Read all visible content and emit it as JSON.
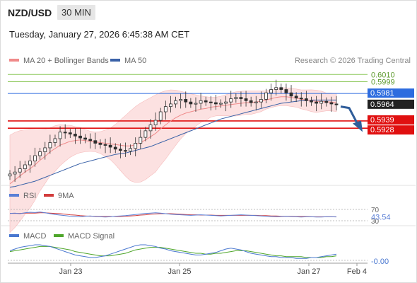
{
  "header": {
    "pair": "NZD/USD",
    "timeframe": "30 MIN",
    "timestamp": "Tuesday, January 27, 2026 6:45:38 AM CET"
  },
  "legend_main": {
    "ma20": "MA 20 + Bollinger Bands",
    "ma50": "MA 50"
  },
  "credit": "Research © 2026 Trading Central",
  "legend_rsi": {
    "rsi": "RSI",
    "ma9": "9MA"
  },
  "legend_macd": {
    "macd": "MACD",
    "signal": "MACD Signal"
  },
  "colors": {
    "candle": "#2e2e2e",
    "ma20": "#f08a8a",
    "bollinger_fill": "#fbdcdc",
    "ma50": "#3a62a8",
    "resistance": "#8cc85a",
    "pivot": "#2d6cdf",
    "support": "#e01010",
    "arrow": "#2f5d9a",
    "rsi": "#5a7fd6",
    "rsi_ma": "#d23c3c",
    "macd": "#4a78d0",
    "macd_signal": "#4fa62b"
  },
  "chart_data": [
    {
      "type": "candlestick",
      "title": "NZD/USD",
      "x_ticks": [
        "Jan 23",
        "Jan 25",
        "Jan 27",
        "Feb 4"
      ],
      "ylim": [
        0.5845,
        0.602
      ],
      "price_levels": [
        {
          "value": 0.601,
          "label": "0.6010",
          "role": "resistance"
        },
        {
          "value": 0.5999,
          "label": "0.5999",
          "role": "resistance"
        },
        {
          "value": 0.5981,
          "label": "0.5981",
          "role": "pivot"
        },
        {
          "value": 0.5964,
          "label": "0.5964",
          "role": "last"
        },
        {
          "value": 0.5939,
          "label": "0.5939",
          "role": "support"
        },
        {
          "value": 0.5928,
          "label": "0.5928",
          "role": "support"
        }
      ],
      "projection": {
        "from": 0.5961,
        "to": 0.5932,
        "direction": "down"
      },
      "series": [
        {
          "name": "Price",
          "values": [
            0.5858,
            0.5861,
            0.5866,
            0.5872,
            0.5878,
            0.5886,
            0.5892,
            0.5898,
            0.5906,
            0.5912,
            0.5922,
            0.5921,
            0.5919,
            0.5916,
            0.5913,
            0.5911,
            0.5909,
            0.5905,
            0.5903,
            0.5902,
            0.5899,
            0.5896,
            0.5894,
            0.5893,
            0.5897,
            0.5905,
            0.5914,
            0.5924,
            0.5933,
            0.594,
            0.5953,
            0.5961,
            0.5965,
            0.597,
            0.5972,
            0.5968,
            0.5965,
            0.5966,
            0.597,
            0.5968,
            0.5967,
            0.5965,
            0.5966,
            0.5968,
            0.5973,
            0.5975,
            0.5973,
            0.597,
            0.5967,
            0.5968,
            0.5972,
            0.5982,
            0.5987,
            0.599,
            0.5987,
            0.5982,
            0.5977,
            0.5974,
            0.5973,
            0.597,
            0.5968,
            0.5966,
            0.5969,
            0.5967,
            0.5965,
            0.5964
          ]
        },
        {
          "name": "MA 20",
          "values": [
            0.5843,
            0.5849,
            0.5855,
            0.5861,
            0.5866,
            0.5872,
            0.5879,
            0.5885,
            0.5892,
            0.5897,
            0.5902,
            0.5905,
            0.5908,
            0.5909,
            0.591,
            0.5909,
            0.5908,
            0.5907,
            0.5906,
            0.5905,
            0.5904,
            0.5903,
            0.5902,
            0.5901,
            0.5901,
            0.5903,
            0.5906,
            0.591,
            0.5915,
            0.592,
            0.5927,
            0.5933,
            0.5939,
            0.5944,
            0.5948,
            0.5951,
            0.5953,
            0.5955,
            0.5957,
            0.5958,
            0.596,
            0.5961,
            0.5962,
            0.5963,
            0.5964,
            0.5965,
            0.5966,
            0.5967,
            0.5967,
            0.5968,
            0.5969,
            0.5971,
            0.5973,
            0.5975,
            0.5976,
            0.5976,
            0.5975,
            0.5974,
            0.5972,
            0.5971,
            0.597,
            0.5969,
            0.5969,
            0.5968,
            0.5968,
            0.5967
          ]
        },
        {
          "name": "MA 50",
          "values": [
            0.5838,
            0.5839,
            0.5841,
            0.5843,
            0.5845,
            0.5847,
            0.585,
            0.5853,
            0.5856,
            0.5859,
            0.5862,
            0.5865,
            0.5868,
            0.5871,
            0.5874,
            0.5876,
            0.5878,
            0.588,
            0.5882,
            0.5884,
            0.5886,
            0.5888,
            0.5889,
            0.589,
            0.5892,
            0.5894,
            0.5896,
            0.5898,
            0.59,
            0.5903,
            0.5906,
            0.5909,
            0.5912,
            0.5915,
            0.5918,
            0.5921,
            0.5924,
            0.5927,
            0.593,
            0.5933,
            0.5936,
            0.5939,
            0.5942,
            0.5944,
            0.5946,
            0.5948,
            0.595,
            0.5952,
            0.5954,
            0.5956,
            0.5958,
            0.596,
            0.5962,
            0.5964,
            0.5966,
            0.5967,
            0.5968,
            0.5969,
            0.597,
            0.597,
            0.5971,
            0.5971,
            0.5971,
            0.5971,
            0.5971,
            0.5971
          ]
        }
      ]
    },
    {
      "type": "line",
      "title": "RSI",
      "levels": [
        {
          "value": 70,
          "label": "70"
        },
        {
          "value": 30,
          "label": "30"
        }
      ],
      "last_value": {
        "value": 43.54,
        "label": "43.54"
      },
      "ylim": [
        0,
        100
      ],
      "series": [
        {
          "name": "RSI",
          "values": [
            56,
            57,
            55,
            58,
            60,
            59,
            61,
            58,
            55,
            52,
            50,
            48,
            46,
            45,
            44,
            46,
            47,
            45,
            44,
            43,
            44,
            46,
            47,
            48,
            50,
            52,
            54,
            56,
            57,
            58,
            57,
            55,
            53,
            52,
            51,
            50,
            49,
            50,
            51,
            50,
            49,
            48,
            47,
            48,
            49,
            50,
            51,
            50,
            49,
            48,
            47,
            46,
            45,
            44,
            45,
            46,
            45,
            44,
            43,
            44,
            44,
            43,
            43,
            44,
            44,
            43.54
          ]
        },
        {
          "name": "9MA",
          "values": [
            56,
            56,
            56,
            57,
            57,
            57,
            58,
            58,
            57,
            56,
            55,
            53,
            51,
            50,
            48,
            47,
            46,
            46,
            45,
            45,
            45,
            45,
            45,
            46,
            47,
            48,
            50,
            51,
            53,
            54,
            55,
            55,
            55,
            54,
            53,
            52,
            51,
            51,
            50,
            50,
            50,
            49,
            49,
            49,
            49,
            49,
            49,
            49,
            49,
            49,
            48,
            48,
            47,
            47,
            46,
            46,
            46,
            45,
            45,
            45,
            44,
            44,
            44,
            44,
            44,
            44
          ]
        }
      ]
    },
    {
      "type": "line",
      "title": "MACD",
      "last_value": {
        "value": -0.0,
        "label": "-0.00"
      },
      "series": [
        {
          "name": "MACD",
          "values": [
            0.3,
            0.5,
            0.7,
            0.8,
            0.9,
            1.0,
            1.0,
            0.9,
            0.8,
            0.6,
            0.4,
            0.2,
            0.0,
            -0.2,
            -0.3,
            -0.4,
            -0.5,
            -0.5,
            -0.4,
            -0.3,
            -0.1,
            0.1,
            0.3,
            0.5,
            0.7,
            0.9,
            1.0,
            1.0,
            0.9,
            0.8,
            0.6,
            0.5,
            0.3,
            0.2,
            0.1,
            0.0,
            -0.1,
            -0.2,
            -0.2,
            -0.1,
            0.0,
            0.1,
            0.3,
            0.5,
            0.6,
            0.5,
            0.4,
            0.2,
            0.0,
            -0.1,
            -0.2,
            -0.3,
            -0.4,
            -0.4,
            -0.5,
            -0.5,
            -0.5,
            -0.6,
            -0.6,
            -0.6,
            -0.5,
            -0.5,
            -0.4,
            -0.3,
            -0.2,
            -0.1
          ]
        },
        {
          "name": "MACD Signal",
          "values": [
            0.2,
            0.3,
            0.4,
            0.5,
            0.6,
            0.7,
            0.8,
            0.8,
            0.8,
            0.7,
            0.6,
            0.5,
            0.4,
            0.2,
            0.1,
            0.0,
            -0.1,
            -0.2,
            -0.3,
            -0.3,
            -0.3,
            -0.2,
            -0.1,
            0.0,
            0.2,
            0.4,
            0.5,
            0.6,
            0.7,
            0.7,
            0.7,
            0.6,
            0.5,
            0.4,
            0.3,
            0.2,
            0.1,
            0.0,
            0.0,
            -0.1,
            -0.1,
            0.0,
            0.0,
            0.1,
            0.2,
            0.3,
            0.3,
            0.3,
            0.2,
            0.1,
            0.0,
            -0.1,
            -0.2,
            -0.3,
            -0.3,
            -0.4,
            -0.4,
            -0.4,
            -0.4,
            -0.5,
            -0.5,
            -0.5,
            -0.5,
            -0.4,
            -0.4,
            -0.3
          ]
        }
      ]
    }
  ]
}
